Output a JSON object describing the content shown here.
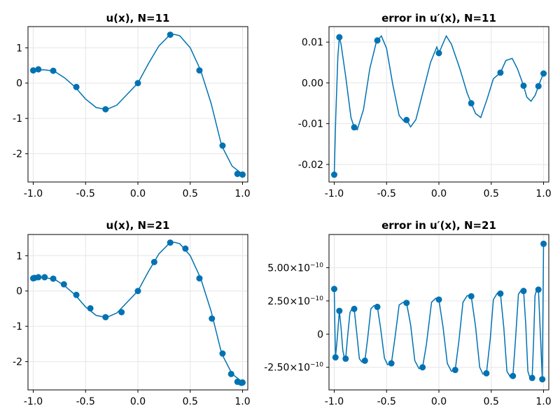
{
  "chart_data": [
    {
      "type": "line",
      "title": "u(x),  N=11",
      "xlabel": "",
      "ylabel": "",
      "xlim": [
        -1.05,
        1.05
      ],
      "ylim": [
        -2.8,
        1.6
      ],
      "xticks": [
        -1.0,
        -0.5,
        0.0,
        0.5,
        1.0
      ],
      "xtick_labels": [
        "-1.0",
        "-0.5",
        "0.0",
        "0.5",
        "1.0"
      ],
      "yticks": [
        1,
        0,
        -1,
        -2
      ],
      "ytick_labels": [
        "1",
        "0",
        "-1",
        "-2"
      ],
      "grid": true,
      "curve_x": [
        -1.0,
        -0.9,
        -0.8,
        -0.7,
        -0.6,
        -0.5,
        -0.4,
        -0.3,
        -0.2,
        -0.1,
        0.0,
        0.1,
        0.2,
        0.3,
        0.35,
        0.4,
        0.5,
        0.6,
        0.7,
        0.8,
        0.9,
        1.0
      ],
      "curve_y": [
        0.35,
        0.38,
        0.34,
        0.15,
        -0.11,
        -0.45,
        -0.69,
        -0.75,
        -0.62,
        -0.31,
        0.0,
        0.55,
        1.05,
        1.35,
        1.38,
        1.34,
        1.0,
        0.36,
        -0.58,
        -1.77,
        -2.35,
        -2.58
      ],
      "points_x": [
        -1.0,
        -0.951,
        -0.809,
        -0.588,
        -0.309,
        0.0,
        0.309,
        0.588,
        0.809,
        0.951,
        1.0
      ],
      "points_y": [
        0.36,
        0.39,
        0.35,
        -0.11,
        -0.74,
        0.0,
        1.37,
        0.36,
        -1.77,
        -2.57,
        -2.59
      ]
    },
    {
      "type": "line",
      "title": "error in u′(x),  N=11",
      "xlabel": "",
      "ylabel": "",
      "xlim": [
        -1.05,
        1.05
      ],
      "ylim": [
        -0.0243,
        0.0138
      ],
      "xticks": [
        -1.0,
        -0.5,
        0.0,
        0.5,
        1.0
      ],
      "xtick_labels": [
        "-1.0",
        "-0.5",
        "0.0",
        "0.5",
        "1.0"
      ],
      "yticks": [
        0.01,
        0.0,
        -0.01,
        -0.02
      ],
      "ytick_labels": [
        "0.01",
        "0.00",
        "-0.01",
        "-0.02"
      ],
      "grid": true,
      "curve_x": [
        -1.0,
        -0.985,
        -0.965,
        -0.951,
        -0.935,
        -0.89,
        -0.84,
        -0.809,
        -0.78,
        -0.72,
        -0.66,
        -0.6,
        -0.588,
        -0.55,
        -0.5,
        -0.44,
        -0.38,
        -0.33,
        -0.309,
        -0.27,
        -0.22,
        -0.15,
        -0.08,
        -0.02,
        0.0,
        0.07,
        0.12,
        0.2,
        0.27,
        0.309,
        0.35,
        0.4,
        0.46,
        0.52,
        0.588,
        0.64,
        0.7,
        0.75,
        0.809,
        0.84,
        0.88,
        0.92,
        0.951,
        0.97,
        1.0
      ],
      "curve_y": [
        -0.0225,
        -0.008,
        0.0065,
        0.0112,
        0.0095,
        0.0015,
        -0.0085,
        -0.0109,
        -0.0115,
        -0.0065,
        0.0035,
        0.0098,
        0.0104,
        0.0115,
        0.0085,
        -0.0005,
        -0.008,
        -0.0095,
        -0.0091,
        -0.0108,
        -0.009,
        -0.002,
        0.005,
        0.0088,
        0.0073,
        0.0115,
        0.0095,
        0.0035,
        -0.0025,
        -0.005,
        -0.0075,
        -0.0085,
        -0.004,
        0.001,
        0.0025,
        0.0055,
        0.006,
        0.0035,
        -0.0007,
        -0.0035,
        -0.0045,
        -0.003,
        -0.0008,
        0.0005,
        0.0023
      ],
      "points_x": [
        -1.0,
        -0.951,
        -0.809,
        -0.588,
        -0.309,
        0.0,
        0.309,
        0.588,
        0.809,
        0.951,
        1.0
      ],
      "points_y": [
        -0.0225,
        0.0112,
        -0.0109,
        0.0104,
        -0.0091,
        0.0073,
        -0.005,
        0.0025,
        -0.0007,
        -0.0008,
        0.0023
      ]
    },
    {
      "type": "line",
      "title": "u(x),  N=21",
      "xlabel": "",
      "ylabel": "",
      "xlim": [
        -1.05,
        1.05
      ],
      "ylim": [
        -2.8,
        1.6
      ],
      "xticks": [
        -1.0,
        -0.5,
        0.0,
        0.5,
        1.0
      ],
      "xtick_labels": [
        "-1.0",
        "-0.5",
        "0.0",
        "0.5",
        "1.0"
      ],
      "yticks": [
        1,
        0,
        -1,
        -2
      ],
      "ytick_labels": [
        "1",
        "0",
        "-1",
        "-2"
      ],
      "grid": true,
      "curve_x": [
        -1.0,
        -0.9,
        -0.8,
        -0.7,
        -0.6,
        -0.5,
        -0.4,
        -0.3,
        -0.2,
        -0.1,
        0.0,
        0.1,
        0.2,
        0.3,
        0.35,
        0.4,
        0.5,
        0.6,
        0.7,
        0.8,
        0.9,
        1.0
      ],
      "curve_y": [
        0.35,
        0.38,
        0.34,
        0.15,
        -0.11,
        -0.45,
        -0.69,
        -0.75,
        -0.62,
        -0.31,
        0.0,
        0.55,
        1.05,
        1.35,
        1.38,
        1.34,
        1.0,
        0.36,
        -0.58,
        -1.77,
        -2.35,
        -2.58
      ],
      "points_x": [
        -1.0,
        -0.988,
        -0.951,
        -0.891,
        -0.809,
        -0.707,
        -0.588,
        -0.454,
        -0.309,
        -0.156,
        0.0,
        0.156,
        0.309,
        0.454,
        0.588,
        0.707,
        0.809,
        0.891,
        0.951,
        0.988,
        1.0
      ],
      "points_y": [
        0.36,
        0.37,
        0.39,
        0.39,
        0.35,
        0.19,
        -0.11,
        -0.49,
        -0.74,
        -0.6,
        0.0,
        0.82,
        1.37,
        1.2,
        0.36,
        -0.78,
        -1.77,
        -2.35,
        -2.57,
        -2.6,
        -2.59
      ]
    },
    {
      "type": "line",
      "title": "error in u′(x),  N=21",
      "xlabel": "",
      "ylabel": "",
      "xlim": [
        -1.05,
        1.05
      ],
      "ylim": [
        -4.2e-10,
        7.5e-10
      ],
      "xticks": [
        -1.0,
        -0.5,
        0.0,
        0.5,
        1.0
      ],
      "xtick_labels": [
        "-1.0",
        "-0.5",
        "0.0",
        "0.5",
        "1.0"
      ],
      "yticks": [
        5e-10,
        2.5e-10,
        0,
        -2.5e-10
      ],
      "ytick_labels": [
        {
          "mantissa": "5.00×10",
          "exp": "−10"
        },
        {
          "mantissa": "2.50×10",
          "exp": "−10"
        },
        {
          "mantissa": "0",
          "exp": ""
        },
        {
          "mantissa": "-2.50×10",
          "exp": "−10"
        }
      ],
      "grid": true,
      "curve_x": [
        -1.0,
        -0.994,
        -0.988,
        -0.97,
        -0.951,
        -0.935,
        -0.918,
        -0.905,
        -0.891,
        -0.87,
        -0.85,
        -0.83,
        -0.809,
        -0.785,
        -0.76,
        -0.735,
        -0.707,
        -0.68,
        -0.65,
        -0.62,
        -0.588,
        -0.56,
        -0.52,
        -0.49,
        -0.454,
        -0.42,
        -0.38,
        -0.34,
        -0.309,
        -0.27,
        -0.23,
        -0.19,
        -0.156,
        -0.12,
        -0.07,
        -0.03,
        0.0,
        0.04,
        0.08,
        0.12,
        0.156,
        0.19,
        0.23,
        0.27,
        0.309,
        0.35,
        0.39,
        0.42,
        0.454,
        0.49,
        0.52,
        0.56,
        0.588,
        0.62,
        0.65,
        0.68,
        0.707,
        0.73,
        0.76,
        0.785,
        0.809,
        0.83,
        0.85,
        0.87,
        0.891,
        0.905,
        0.918,
        0.935,
        0.951,
        0.97,
        0.988,
        0.994,
        1.0
      ],
      "curve_y": [
        3.4e-10,
        5e-11,
        -1.75e-10,
        -2e-11,
        1.75e-10,
        5e-11,
        -1.2e-10,
        -1.75e-10,
        -1.85e-10,
        0.0,
        1.6e-10,
        1.95e-10,
        1.9e-10,
        1e-11,
        -1.85e-10,
        -2.1e-10,
        -2e-10,
        -3e-11,
        1.9e-10,
        2.15e-10,
        2.05e-10,
        6e-11,
        -1.8e-10,
        -2.3e-10,
        -2.2e-10,
        -3e-11,
        2.2e-10,
        2.4e-10,
        2.35e-10,
        7e-11,
        -2e-10,
        -2.6e-10,
        -2.5e-10,
        -8e-11,
        2.4e-10,
        2.7e-10,
        2.6e-10,
        5e-11,
        -2.2e-10,
        -2.8e-10,
        -2.7e-10,
        -6e-11,
        2.4e-10,
        2.9e-10,
        2.85e-10,
        6e-11,
        -2.5e-10,
        -3e-10,
        -2.95e-10,
        -4e-11,
        2.6e-10,
        3.1e-10,
        3.05e-10,
        5e-11,
        -2.8e-10,
        -3.2e-10,
        -3.15e-10,
        -6e-11,
        3e-10,
        3.3e-10,
        3.25e-10,
        7e-11,
        -2.8e-10,
        -3.3e-10,
        -3.3e-10,
        -5e-11,
        2.9e-10,
        3.35e-10,
        3.35e-10,
        0.0,
        -3.4e-10,
        1.5e-10,
        6.8e-10
      ],
      "points_x": [
        -1.0,
        -0.988,
        -0.951,
        -0.891,
        -0.809,
        -0.707,
        -0.588,
        -0.454,
        -0.309,
        -0.156,
        0.0,
        0.156,
        0.309,
        0.454,
        0.588,
        0.707,
        0.809,
        0.891,
        0.951,
        0.988,
        1.0
      ],
      "points_y": [
        3.4e-10,
        -1.75e-10,
        1.75e-10,
        -1.85e-10,
        1.9e-10,
        -2e-10,
        2.05e-10,
        -2.2e-10,
        2.35e-10,
        -2.5e-10,
        2.6e-10,
        -2.7e-10,
        2.85e-10,
        -2.95e-10,
        3.05e-10,
        -3.15e-10,
        3.25e-10,
        -3.3e-10,
        3.35e-10,
        -3.4e-10,
        6.8e-10
      ]
    }
  ],
  "style": {
    "line_color": "#0072b2",
    "frame_color": "#000000",
    "grid_color": "#e6e6e6"
  }
}
